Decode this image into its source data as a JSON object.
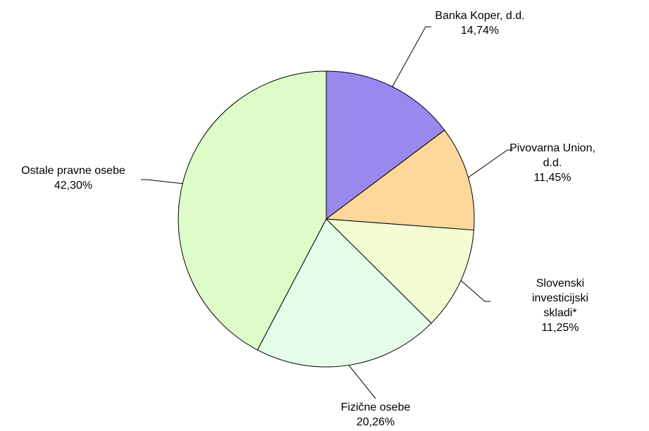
{
  "chart_data": {
    "type": "pie",
    "categories": [
      "Banka Koper, d.d.",
      "Pivovarna Union, d.d.",
      "Slovenski investicijski skladi*",
      "Fizične osebe",
      "Ostale pravne osebe"
    ],
    "values": [
      14.74,
      11.45,
      11.25,
      20.26,
      42.3
    ],
    "value_labels": [
      "14,74%",
      "11,45%",
      "11,25%",
      "20,26%",
      "42,30%"
    ],
    "colors": [
      "#9988ee",
      "#fdd89a",
      "#f4fcd4",
      "#e4fce8",
      "#ddfcc8"
    ]
  }
}
